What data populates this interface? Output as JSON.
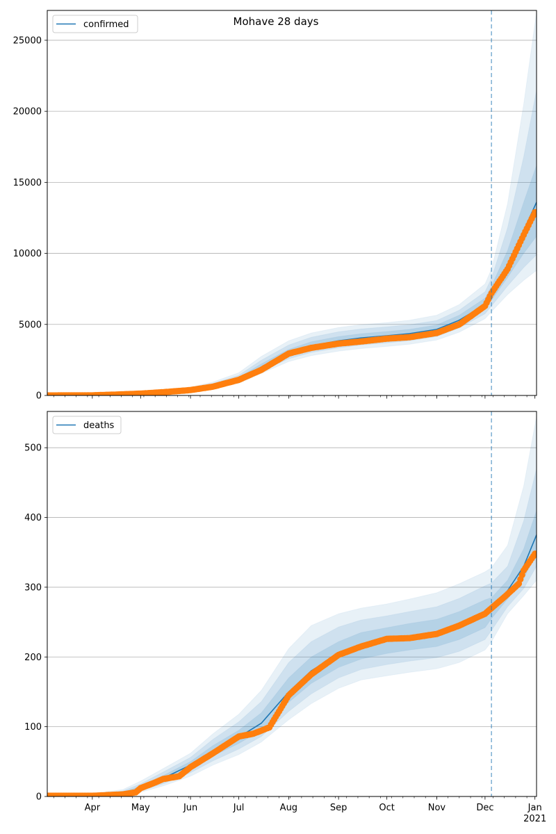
{
  "figure": {
    "title": "Mohave 28 days"
  },
  "chart_data": [
    {
      "type": "line",
      "legend": "confirmed",
      "legend_position": "top-left",
      "grid": "horizontal",
      "xlim": [
        "2020-03-04",
        "2021-01-02"
      ],
      "ylim": [
        0,
        27100
      ],
      "yticks": [
        0,
        5000,
        10000,
        15000,
        20000,
        25000
      ],
      "cutoff_date": "2020-12-05",
      "colors": {
        "line": "#1f77b4",
        "band": "#1f77b4",
        "points": "#ff7f0e"
      },
      "model_median": [
        [
          "2020-03-04",
          80
        ],
        [
          "2020-04-01",
          90
        ],
        [
          "2020-05-01",
          180
        ],
        [
          "2020-06-01",
          420
        ],
        [
          "2020-06-15",
          700
        ],
        [
          "2020-07-01",
          1150
        ],
        [
          "2020-07-15",
          2000
        ],
        [
          "2020-08-01",
          3000
        ],
        [
          "2020-08-15",
          3500
        ],
        [
          "2020-09-01",
          3850
        ],
        [
          "2020-09-15",
          4050
        ],
        [
          "2020-10-01",
          4200
        ],
        [
          "2020-10-15",
          4350
        ],
        [
          "2020-11-01",
          4650
        ],
        [
          "2020-11-15",
          5300
        ],
        [
          "2020-12-01",
          6400
        ],
        [
          "2020-12-05",
          7200
        ],
        [
          "2020-12-15",
          9200
        ],
        [
          "2020-12-25",
          11600
        ],
        [
          "2021-01-02",
          13600
        ]
      ],
      "band_50": [
        [
          "2020-03-04",
          70,
          90
        ],
        [
          "2020-04-01",
          80,
          100
        ],
        [
          "2020-05-01",
          160,
          200
        ],
        [
          "2020-06-01",
          380,
          470
        ],
        [
          "2020-06-15",
          640,
          770
        ],
        [
          "2020-07-01",
          1050,
          1280
        ],
        [
          "2020-07-15",
          1850,
          2220
        ],
        [
          "2020-08-01",
          2780,
          3250
        ],
        [
          "2020-08-15",
          3250,
          3780
        ],
        [
          "2020-09-01",
          3580,
          4150
        ],
        [
          "2020-09-15",
          3780,
          4350
        ],
        [
          "2020-10-01",
          3920,
          4500
        ],
        [
          "2020-10-15",
          4080,
          4650
        ],
        [
          "2020-11-01",
          4380,
          4960
        ],
        [
          "2020-11-15",
          5000,
          5650
        ],
        [
          "2020-12-01",
          6050,
          6850
        ],
        [
          "2020-12-05",
          6700,
          7700
        ],
        [
          "2020-12-15",
          8300,
          10200
        ],
        [
          "2020-12-25",
          10000,
          13600
        ],
        [
          "2021-01-02",
          11200,
          16200
        ]
      ],
      "band_80": [
        [
          "2020-03-04",
          60,
          100
        ],
        [
          "2020-04-01",
          70,
          110
        ],
        [
          "2020-05-01",
          140,
          230
        ],
        [
          "2020-06-01",
          340,
          520
        ],
        [
          "2020-06-15",
          580,
          850
        ],
        [
          "2020-07-01",
          950,
          1420
        ],
        [
          "2020-07-15",
          1700,
          2480
        ],
        [
          "2020-08-01",
          2580,
          3550
        ],
        [
          "2020-08-15",
          3030,
          4100
        ],
        [
          "2020-09-01",
          3350,
          4480
        ],
        [
          "2020-09-15",
          3550,
          4680
        ],
        [
          "2020-10-01",
          3700,
          4830
        ],
        [
          "2020-10-15",
          3850,
          4980
        ],
        [
          "2020-11-01",
          4150,
          5280
        ],
        [
          "2020-11-15",
          4750,
          6000
        ],
        [
          "2020-12-01",
          5750,
          7300
        ],
        [
          "2020-12-05",
          6300,
          8250
        ],
        [
          "2020-12-15",
          7700,
          11800
        ],
        [
          "2020-12-25",
          9000,
          16800
        ],
        [
          "2021-01-02",
          9900,
          21500
        ]
      ],
      "band_95": [
        [
          "2020-03-04",
          50,
          110
        ],
        [
          "2020-04-01",
          60,
          120
        ],
        [
          "2020-05-01",
          120,
          260
        ],
        [
          "2020-06-01",
          300,
          580
        ],
        [
          "2020-06-15",
          520,
          950
        ],
        [
          "2020-07-01",
          850,
          1600
        ],
        [
          "2020-07-15",
          1550,
          2750
        ],
        [
          "2020-08-01",
          2380,
          3850
        ],
        [
          "2020-08-15",
          2800,
          4400
        ],
        [
          "2020-09-01",
          3120,
          4780
        ],
        [
          "2020-09-15",
          3300,
          4980
        ],
        [
          "2020-10-01",
          3450,
          5130
        ],
        [
          "2020-10-15",
          3600,
          5300
        ],
        [
          "2020-11-01",
          3900,
          5650
        ],
        [
          "2020-11-15",
          4450,
          6400
        ],
        [
          "2020-12-01",
          5400,
          7850
        ],
        [
          "2020-12-05",
          5900,
          8900
        ],
        [
          "2020-12-15",
          7100,
          13500
        ],
        [
          "2020-12-25",
          8100,
          20500
        ],
        [
          "2021-01-02",
          8800,
          27000
        ]
      ],
      "observed_anchors": [
        [
          "2020-03-04",
          0
        ],
        [
          "2020-04-01",
          10
        ],
        [
          "2020-04-15",
          60
        ],
        [
          "2020-05-01",
          130
        ],
        [
          "2020-05-15",
          230
        ],
        [
          "2020-06-01",
          380
        ],
        [
          "2020-06-15",
          620
        ],
        [
          "2020-07-01",
          1100
        ],
        [
          "2020-07-15",
          1800
        ],
        [
          "2020-08-01",
          2950
        ],
        [
          "2020-08-15",
          3350
        ],
        [
          "2020-09-01",
          3650
        ],
        [
          "2020-09-15",
          3800
        ],
        [
          "2020-10-01",
          4000
        ],
        [
          "2020-10-15",
          4100
        ],
        [
          "2020-11-01",
          4400
        ],
        [
          "2020-11-15",
          5000
        ],
        [
          "2020-12-01",
          6300
        ],
        [
          "2020-12-05",
          7200
        ],
        [
          "2020-12-15",
          8900
        ],
        [
          "2020-12-25",
          11300
        ],
        [
          "2021-01-01",
          12900
        ]
      ]
    },
    {
      "type": "line",
      "legend": "deaths",
      "legend_position": "top-left",
      "grid": "horizontal",
      "xlim": [
        "2020-03-04",
        "2021-01-02"
      ],
      "ylim": [
        0,
        552
      ],
      "yticks": [
        0,
        100,
        200,
        300,
        400,
        500
      ],
      "xticks": [
        "Apr",
        "May",
        "Jun",
        "Jul",
        "Aug",
        "Sep",
        "Oct",
        "Nov",
        "Dec",
        "Jan"
      ],
      "xtick_dates": [
        "2020-04-01",
        "2020-05-01",
        "2020-06-01",
        "2020-07-01",
        "2020-08-01",
        "2020-09-01",
        "2020-10-01",
        "2020-11-01",
        "2020-12-01",
        "2021-01-01"
      ],
      "year_label": "2021",
      "cutoff_date": "2020-12-05",
      "colors": {
        "line": "#1f77b4",
        "band": "#1f77b4",
        "points": "#ff7f0e"
      },
      "model_median": [
        [
          "2020-03-04",
          1
        ],
        [
          "2020-04-01",
          1
        ],
        [
          "2020-04-20",
          4
        ],
        [
          "2020-05-01",
          12
        ],
        [
          "2020-05-15",
          26
        ],
        [
          "2020-06-01",
          45
        ],
        [
          "2020-06-15",
          65
        ],
        [
          "2020-07-01",
          85
        ],
        [
          "2020-07-15",
          105
        ],
        [
          "2020-08-01",
          150
        ],
        [
          "2020-08-15",
          180
        ],
        [
          "2020-09-01",
          205
        ],
        [
          "2020-09-15",
          218
        ],
        [
          "2020-10-01",
          225
        ],
        [
          "2020-10-15",
          230
        ],
        [
          "2020-11-01",
          235
        ],
        [
          "2020-11-15",
          245
        ],
        [
          "2020-12-01",
          262
        ],
        [
          "2020-12-05",
          270
        ],
        [
          "2020-12-15",
          295
        ],
        [
          "2020-12-25",
          330
        ],
        [
          "2021-01-02",
          375
        ]
      ],
      "band_50": [
        [
          "2020-03-04",
          0,
          2
        ],
        [
          "2020-04-01",
          0,
          2
        ],
        [
          "2020-04-20",
          3,
          6
        ],
        [
          "2020-05-01",
          10,
          15
        ],
        [
          "2020-05-15",
          22,
          30
        ],
        [
          "2020-06-01",
          40,
          50
        ],
        [
          "2020-06-15",
          58,
          73
        ],
        [
          "2020-07-01",
          76,
          95
        ],
        [
          "2020-07-15",
          95,
          120
        ],
        [
          "2020-08-01",
          135,
          170
        ],
        [
          "2020-08-15",
          162,
          200
        ],
        [
          "2020-09-01",
          185,
          222
        ],
        [
          "2020-09-15",
          197,
          235
        ],
        [
          "2020-10-01",
          205,
          242
        ],
        [
          "2020-10-15",
          210,
          248
        ],
        [
          "2020-11-01",
          215,
          254
        ],
        [
          "2020-11-15",
          225,
          265
        ],
        [
          "2020-12-01",
          242,
          282
        ],
        [
          "2020-12-05",
          255,
          285
        ],
        [
          "2020-12-15",
          283,
          310
        ],
        [
          "2020-12-25",
          312,
          355
        ],
        [
          "2021-01-02",
          350,
          410
        ]
      ],
      "band_80": [
        [
          "2020-03-04",
          0,
          3
        ],
        [
          "2020-04-01",
          0,
          3
        ],
        [
          "2020-04-20",
          2,
          8
        ],
        [
          "2020-05-01",
          8,
          18
        ],
        [
          "2020-05-15",
          18,
          35
        ],
        [
          "2020-06-01",
          34,
          56
        ],
        [
          "2020-06-15",
          51,
          82
        ],
        [
          "2020-07-01",
          68,
          107
        ],
        [
          "2020-07-15",
          86,
          136
        ],
        [
          "2020-08-01",
          122,
          192
        ],
        [
          "2020-08-15",
          147,
          222
        ],
        [
          "2020-09-01",
          170,
          243
        ],
        [
          "2020-09-15",
          182,
          253
        ],
        [
          "2020-10-01",
          189,
          259
        ],
        [
          "2020-10-15",
          194,
          265
        ],
        [
          "2020-11-01",
          199,
          272
        ],
        [
          "2020-11-15",
          208,
          284
        ],
        [
          "2020-12-01",
          225,
          302
        ],
        [
          "2020-12-05",
          238,
          306
        ],
        [
          "2020-12-15",
          272,
          330
        ],
        [
          "2020-12-25",
          298,
          395
        ],
        [
          "2021-01-02",
          330,
          470
        ]
      ],
      "band_95": [
        [
          "2020-03-04",
          0,
          4
        ],
        [
          "2020-04-01",
          0,
          4
        ],
        [
          "2020-04-20",
          1,
          10
        ],
        [
          "2020-05-01",
          6,
          22
        ],
        [
          "2020-05-15",
          15,
          40
        ],
        [
          "2020-06-01",
          29,
          62
        ],
        [
          "2020-06-15",
          45,
          90
        ],
        [
          "2020-07-01",
          60,
          118
        ],
        [
          "2020-07-15",
          78,
          152
        ],
        [
          "2020-08-01",
          110,
          212
        ],
        [
          "2020-08-15",
          133,
          245
        ],
        [
          "2020-09-01",
          155,
          262
        ],
        [
          "2020-09-15",
          167,
          270
        ],
        [
          "2020-10-01",
          173,
          276
        ],
        [
          "2020-10-15",
          178,
          283
        ],
        [
          "2020-11-01",
          183,
          292
        ],
        [
          "2020-11-15",
          192,
          305
        ],
        [
          "2020-12-01",
          210,
          322
        ],
        [
          "2020-12-05",
          222,
          328
        ],
        [
          "2020-12-15",
          262,
          360
        ],
        [
          "2020-12-25",
          288,
          445
        ],
        [
          "2021-01-02",
          310,
          545
        ]
      ],
      "observed_anchors": [
        [
          "2020-03-04",
          1
        ],
        [
          "2020-04-01",
          1
        ],
        [
          "2020-04-20",
          3
        ],
        [
          "2020-04-28",
          6
        ],
        [
          "2020-05-01",
          12
        ],
        [
          "2020-05-10",
          20
        ],
        [
          "2020-05-15",
          25
        ],
        [
          "2020-05-25",
          29
        ],
        [
          "2020-06-01",
          42
        ],
        [
          "2020-06-15",
          62
        ],
        [
          "2020-07-01",
          86
        ],
        [
          "2020-07-10",
          90
        ],
        [
          "2020-07-20",
          99
        ],
        [
          "2020-08-01",
          145
        ],
        [
          "2020-08-15",
          175
        ],
        [
          "2020-09-01",
          203
        ],
        [
          "2020-09-15",
          215
        ],
        [
          "2020-10-01",
          226
        ],
        [
          "2020-10-15",
          227
        ],
        [
          "2020-11-01",
          233
        ],
        [
          "2020-11-15",
          245
        ],
        [
          "2020-12-01",
          262
        ],
        [
          "2020-12-05",
          270
        ],
        [
          "2020-12-15",
          290
        ],
        [
          "2020-12-22",
          305
        ],
        [
          "2020-12-25",
          324
        ],
        [
          "2021-01-01",
          348
        ]
      ]
    }
  ]
}
